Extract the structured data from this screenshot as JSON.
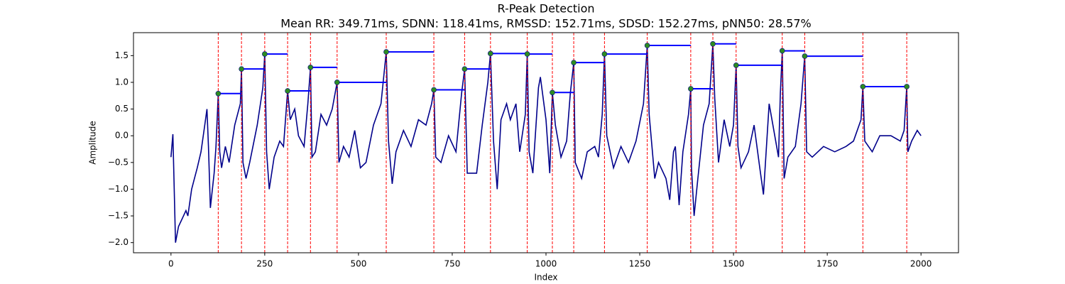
{
  "chart_data": {
    "type": "line",
    "title": "R-Peak Detection",
    "subtitle": "Mean RR: 349.71ms, SDNN: 118.41ms, RMSSD: 152.71ms, SDSD: 152.27ms, pNN50: 28.57%",
    "x_label": "Index",
    "y_label": "Amplitude",
    "xlim": [
      -100,
      2100
    ],
    "ylim": [
      -2.19,
      1.93
    ],
    "xticks": [
      0,
      250,
      500,
      750,
      1000,
      1250,
      1500,
      1750,
      2000
    ],
    "yticks": [
      {
        "value": -2,
        "label": "−2.0"
      },
      {
        "value": -1.5,
        "label": "−1.5"
      },
      {
        "value": -1,
        "label": "−1.0"
      },
      {
        "value": -0.5,
        "label": "−0.5"
      },
      {
        "value": 0,
        "label": "0.0"
      },
      0.5,
      {
        "value": 1,
        "label": "1.0"
      },
      1.5
    ],
    "series": [
      {
        "color": "#00008b",
        "x": [
          0,
          5,
          12,
          20,
          30,
          40,
          45,
          55,
          70,
          80,
          90,
          96,
          100,
          105,
          115,
          120,
          126,
          130,
          135,
          145,
          155,
          170,
          185,
          188,
          192,
          200,
          210,
          230,
          245,
          250,
          255,
          262,
          275,
          290,
          300,
          311,
          318,
          330,
          340,
          355,
          365,
          372,
          376,
          385,
          400,
          415,
          430,
          443,
          448,
          460,
          475,
          490,
          505,
          520,
          540,
          560,
          574,
          580,
          590,
          600,
          620,
          640,
          660,
          680,
          695,
          701,
          706,
          720,
          740,
          760,
          775,
          783,
          790,
          800,
          815,
          830,
          845,
          852,
          860,
          870,
          880,
          895,
          905,
          920,
          930,
          945,
          950,
          955,
          965,
          980,
          985,
          1000,
          1010,
          1017,
          1025,
          1040,
          1055,
          1065,
          1074,
          1078,
          1095,
          1110,
          1130,
          1140,
          1150,
          1156,
          1162,
          1180,
          1200,
          1220,
          1240,
          1260,
          1270,
          1275,
          1290,
          1300,
          1320,
          1330,
          1340,
          1345,
          1355,
          1365,
          1380,
          1386,
          1388,
          1395,
          1405,
          1420,
          1435,
          1445,
          1450,
          1460,
          1475,
          1490,
          1500,
          1507,
          1512,
          1520,
          1540,
          1555,
          1570,
          1580,
          1595,
          1605,
          1620,
          1625,
          1630,
          1635,
          1645,
          1665,
          1680,
          1690,
          1695,
          1710,
          1740,
          1770,
          1800,
          1820,
          1840,
          1845,
          1850,
          1870,
          1890,
          1920,
          1945,
          1955,
          1962,
          1965,
          1975,
          1990,
          2000
        ],
        "values": [
          -0.4,
          0.03,
          -2.0,
          -1.7,
          -1.55,
          -1.4,
          -1.5,
          -1.0,
          -0.6,
          -0.3,
          0.2,
          0.5,
          -0.2,
          -1.35,
          -0.7,
          -0.2,
          0.79,
          -0.3,
          -0.6,
          -0.2,
          -0.5,
          0.2,
          0.6,
          1.25,
          -0.5,
          -0.8,
          -0.5,
          0.2,
          0.9,
          1.53,
          -0.3,
          -1.0,
          -0.4,
          -0.1,
          -0.2,
          0.84,
          0.3,
          0.5,
          0.0,
          -0.2,
          0.6,
          1.28,
          -0.4,
          -0.3,
          0.4,
          0.2,
          0.5,
          1.0,
          -0.5,
          -0.2,
          -0.4,
          0.1,
          -0.6,
          -0.5,
          0.2,
          0.6,
          1.57,
          -0.1,
          -0.9,
          -0.3,
          0.1,
          -0.2,
          0.3,
          0.2,
          0.6,
          0.86,
          -0.4,
          -0.5,
          0.0,
          -0.3,
          0.8,
          1.25,
          -0.7,
          -0.7,
          -0.7,
          0.2,
          1.0,
          1.54,
          -0.1,
          -1.0,
          0.3,
          0.6,
          0.3,
          0.6,
          -0.3,
          0.4,
          1.53,
          -0.3,
          -0.7,
          0.9,
          1.1,
          0.3,
          -0.7,
          0.81,
          0.2,
          -0.4,
          -0.1,
          0.8,
          1.37,
          -0.5,
          -0.8,
          -0.3,
          -0.2,
          -0.4,
          0.4,
          1.53,
          0.0,
          -0.6,
          -0.2,
          -0.5,
          -0.1,
          0.6,
          1.69,
          0.4,
          -0.8,
          -0.5,
          -0.8,
          -1.2,
          -0.3,
          -0.2,
          -1.3,
          -0.3,
          0.4,
          0.88,
          -0.6,
          -1.5,
          -0.8,
          0.2,
          0.6,
          1.72,
          0.7,
          -0.5,
          0.3,
          -0.2,
          0.2,
          1.32,
          -0.2,
          -0.6,
          -0.3,
          0.2,
          -0.6,
          -1.1,
          0.6,
          0.2,
          -0.4,
          0.8,
          1.59,
          -0.8,
          -0.4,
          -0.2,
          0.6,
          1.49,
          -0.3,
          -0.4,
          -0.2,
          -0.3,
          -0.2,
          -0.1,
          0.3,
          0.92,
          -0.1,
          -0.3,
          0.0,
          0.0,
          -0.1,
          0.1,
          0.92,
          -0.3,
          -0.1,
          0.1,
          0.0
        ]
      }
    ],
    "peaks": {
      "color": "#2e8b22",
      "line_color": "#ff0000",
      "interval_color": "#0000ff",
      "x": [
        126,
        188,
        250,
        311,
        372,
        443,
        574,
        701,
        783,
        852,
        950,
        1017,
        1074,
        1156,
        1270,
        1386,
        1445,
        1507,
        1630,
        1690,
        1845,
        1962
      ],
      "values": [
        0.79,
        1.25,
        1.53,
        0.84,
        1.28,
        1.0,
        1.57,
        0.86,
        1.25,
        1.54,
        1.53,
        0.81,
        1.37,
        1.53,
        1.69,
        0.88,
        1.72,
        1.32,
        1.59,
        1.49,
        0.92,
        0.92
      ]
    }
  }
}
